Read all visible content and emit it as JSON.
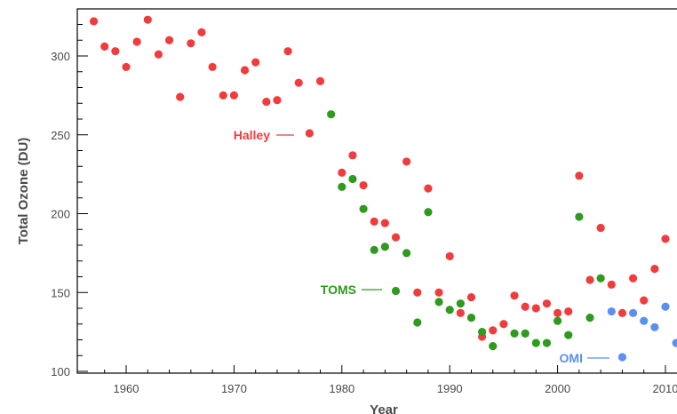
{
  "chart_data": {
    "type": "scatter",
    "xlabel": "Year",
    "ylabel": "Total Ozone (DU)",
    "xlim": [
      1956,
      2011
    ],
    "ylim": [
      100,
      325
    ],
    "x_ticks": [
      "1960",
      "1970",
      "1980",
      "1990",
      "2000",
      "2010"
    ],
    "y_ticks": [
      "100",
      "150",
      "200",
      "250",
      "300"
    ],
    "grid": false,
    "legend": "inline labels",
    "series": [
      {
        "name": "Halley",
        "color": "#f03c3c",
        "x": [
          1957,
          1958,
          1959,
          1960,
          1961,
          1962,
          1963,
          1964,
          1965,
          1966,
          1967,
          1968,
          1969,
          1970,
          1971,
          1972,
          1973,
          1974,
          1975,
          1976,
          1977,
          1978,
          1980,
          1981,
          1982,
          1983,
          1984,
          1985,
          1986,
          1987,
          1988,
          1989,
          1990,
          1991,
          1992,
          1993,
          1994,
          1995,
          1996,
          1997,
          1998,
          1999,
          2000,
          2001,
          2002,
          2003,
          2004,
          2005,
          2006,
          2007,
          2008,
          2009,
          2010
        ],
        "y": [
          322,
          306,
          303,
          293,
          309,
          323,
          301,
          310,
          274,
          308,
          315,
          293,
          275,
          275,
          291,
          296,
          271,
          272,
          303,
          283,
          251,
          284,
          226,
          237,
          218,
          195,
          194,
          185,
          233,
          150,
          216,
          150,
          173,
          137,
          147,
          122,
          126,
          130,
          148,
          141,
          140,
          143,
          137,
          138,
          224,
          158,
          191,
          155,
          137,
          159,
          145,
          165,
          184
        ]
      },
      {
        "name": "TOMS",
        "color": "#2e9a1e",
        "x": [
          1979,
          1980,
          1981,
          1982,
          1983,
          1984,
          1985,
          1986,
          1987,
          1988,
          1989,
          1990,
          1991,
          1992,
          1993,
          1994,
          1996,
          1997,
          1998,
          1999,
          2000,
          2001,
          2002,
          2003,
          2004
        ],
        "y": [
          263,
          217,
          222,
          203,
          177,
          179,
          151,
          175,
          131,
          201,
          144,
          139,
          143,
          134,
          125,
          116,
          124,
          124,
          118,
          118,
          132,
          123,
          198,
          134,
          159
        ]
      },
      {
        "name": "OMI",
        "color": "#5b8ff0",
        "x": [
          2005,
          2006,
          2007,
          2008,
          2009,
          2010,
          2011
        ],
        "y": [
          138,
          109,
          137,
          132,
          128,
          141,
          118
        ]
      }
    ]
  }
}
